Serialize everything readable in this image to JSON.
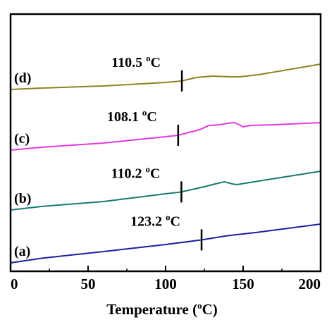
{
  "chart_data": {
    "type": "line",
    "xlabel": "Temperature (",
    "xlabel_unit": "o",
    "xlabel_suffix": "C)",
    "ylabel": "",
    "xlim": [
      0,
      200
    ],
    "x_ticks": [
      "0",
      "50",
      "100",
      "150",
      "200"
    ],
    "y_ticks": false,
    "grid": false,
    "series": [
      {
        "name": "(a)",
        "color": "#1f1fa0",
        "annotation": {
          "text": "123.2",
          "unit": "o",
          "suffix": "C",
          "marker_x": 123.2
        },
        "points": [
          [
            0,
            12
          ],
          [
            20,
            18.5
          ],
          [
            60,
            28
          ],
          [
            100,
            38
          ],
          [
            123,
            44.5
          ],
          [
            140,
            50.5
          ],
          [
            160,
            55.5
          ],
          [
            200,
            67
          ]
        ]
      },
      {
        "name": "(b)",
        "color": "#1a7a73",
        "annotation": {
          "text": "110.2",
          "unit": "o",
          "suffix": "C",
          "marker_x": 110.2
        },
        "points": [
          [
            0,
            87
          ],
          [
            20,
            92
          ],
          [
            60,
            99
          ],
          [
            100,
            110
          ],
          [
            110,
            112.5
          ],
          [
            125,
            120
          ],
          [
            132,
            124
          ],
          [
            138,
            127
          ],
          [
            143,
            124
          ],
          [
            146,
            123
          ],
          [
            160,
            128
          ],
          [
            200,
            142
          ]
        ]
      },
      {
        "name": "(c)",
        "color": "#e03be0",
        "annotation": {
          "text": "108.1",
          "unit": "o",
          "suffix": "C",
          "marker_x": 108.1
        },
        "points": [
          [
            0,
            172
          ],
          [
            20,
            176
          ],
          [
            60,
            182
          ],
          [
            100,
            191
          ],
          [
            108,
            193
          ],
          [
            115,
            197
          ],
          [
            122,
            201
          ],
          [
            128,
            207
          ],
          [
            135,
            208
          ],
          [
            140,
            210
          ],
          [
            144,
            211
          ],
          [
            147,
            208.5
          ],
          [
            150,
            205
          ],
          [
            155,
            207
          ],
          [
            170,
            208
          ],
          [
            200,
            211
          ]
        ]
      },
      {
        "name": "(d)",
        "color": "#8c8420",
        "annotation": {
          "text": "110.5",
          "unit": "o",
          "suffix": "C",
          "marker_x": 110.5
        },
        "points": [
          [
            0,
            258
          ],
          [
            20,
            260
          ],
          [
            60,
            263
          ],
          [
            100,
            268
          ],
          [
            110,
            270
          ],
          [
            120,
            275
          ],
          [
            130,
            277
          ],
          [
            142,
            276
          ],
          [
            148,
            276
          ],
          [
            160,
            279
          ],
          [
            200,
            294
          ]
        ]
      }
    ]
  }
}
